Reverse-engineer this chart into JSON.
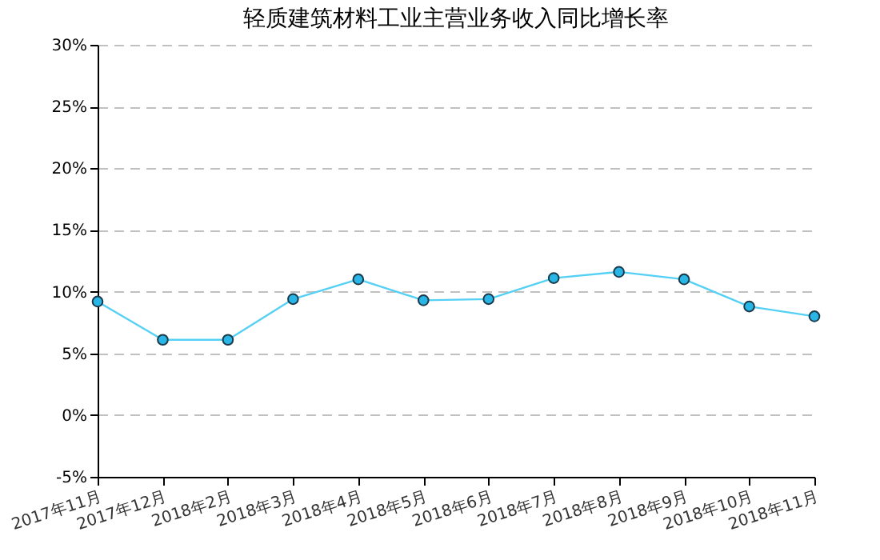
{
  "chart_data": {
    "type": "line",
    "title": "轻质建筑材料工业主营业务收入同比增长率",
    "categories": [
      "2017年11月",
      "2017年12月",
      "2018年2月",
      "2018年3月",
      "2018年4月",
      "2018年5月",
      "2018年6月",
      "2018年7月",
      "2018年8月",
      "2018年9月",
      "2018年10月",
      "2018年11月"
    ],
    "series": [
      {
        "color": "#55d0f5",
        "values": [
          9.2,
          6.1,
          6.1,
          9.4,
          11.0,
          9.3,
          9.4,
          11.1,
          11.6,
          11.0,
          8.8,
          8.0
        ]
      }
    ],
    "ylim": [
      -5,
      30
    ],
    "yticks": [
      {
        "value": -5,
        "label": "-5%"
      },
      {
        "value": 0,
        "label": "0%"
      },
      {
        "value": 5,
        "label": "5%"
      },
      {
        "value": 10,
        "label": "10%"
      },
      {
        "value": 15,
        "label": "15%"
      },
      {
        "value": 20,
        "label": "20%"
      },
      {
        "value": 25,
        "label": "25%"
      },
      {
        "value": 30,
        "label": "30%"
      }
    ],
    "grid": "y",
    "marker": "circle",
    "line_style": "solid"
  }
}
